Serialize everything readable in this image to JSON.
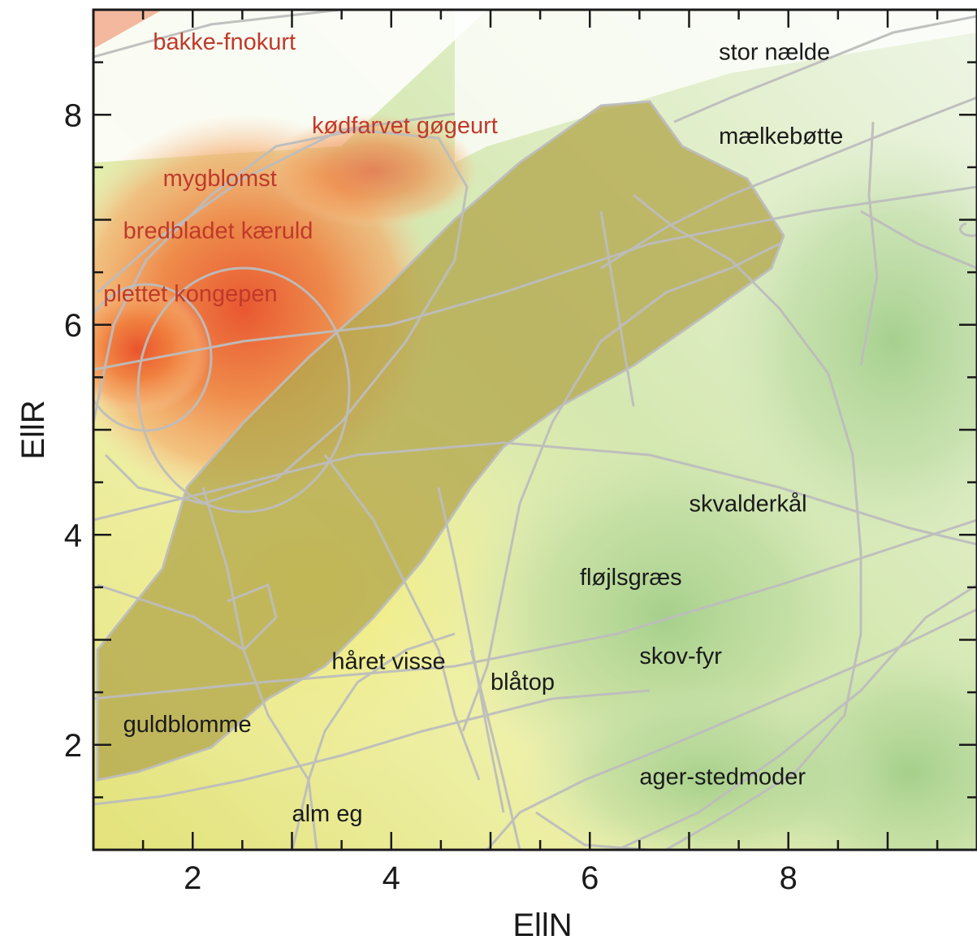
{
  "chart_data": {
    "type": "scatter",
    "title": "",
    "xlabel": "EllN",
    "ylabel": "EllR",
    "xlim": [
      1,
      9.9
    ],
    "ylim": [
      1,
      9
    ],
    "x_ticks": [
      "2",
      "4",
      "6",
      "8"
    ],
    "y_ticks": [
      "2",
      "4",
      "6",
      "8"
    ],
    "grid": false,
    "colors": {
      "red_group_label": "#c0392b",
      "green_group_label": "#1a1a1a",
      "contour_line": "#bdbdbd",
      "overlap_region": "#b5aa52"
    },
    "series": [
      {
        "group": "red",
        "points": [
          {
            "label": "bakke-fnokurt",
            "x": 1.6,
            "y": 8.7
          },
          {
            "label": "kødfarvet gøgeurt",
            "x": 3.2,
            "y": 7.9
          },
          {
            "label": "mygblomst",
            "x": 1.7,
            "y": 7.4
          },
          {
            "label": "bredbladet kæruld",
            "x": 1.3,
            "y": 6.9
          },
          {
            "label": "plettet kongepen",
            "x": 1.1,
            "y": 6.3
          }
        ]
      },
      {
        "group": "green",
        "points": [
          {
            "label": "stor nælde",
            "x": 7.3,
            "y": 8.6
          },
          {
            "label": "mælkebøtte",
            "x": 7.3,
            "y": 7.8
          },
          {
            "label": "skvalderkål",
            "x": 7.0,
            "y": 4.3
          },
          {
            "label": "fløjlsgræs",
            "x": 5.9,
            "y": 3.6
          },
          {
            "label": "skov-fyr",
            "x": 6.5,
            "y": 2.85
          },
          {
            "label": "blåtop",
            "x": 5.0,
            "y": 2.6
          },
          {
            "label": "håret visse",
            "x": 3.4,
            "y": 2.8
          },
          {
            "label": "guldblomme",
            "x": 1.3,
            "y": 2.2
          },
          {
            "label": "ager-stedmoder",
            "x": 6.5,
            "y": 1.7
          },
          {
            "label": "alm eg",
            "x": 3.0,
            "y": 1.35
          }
        ]
      }
    ]
  }
}
